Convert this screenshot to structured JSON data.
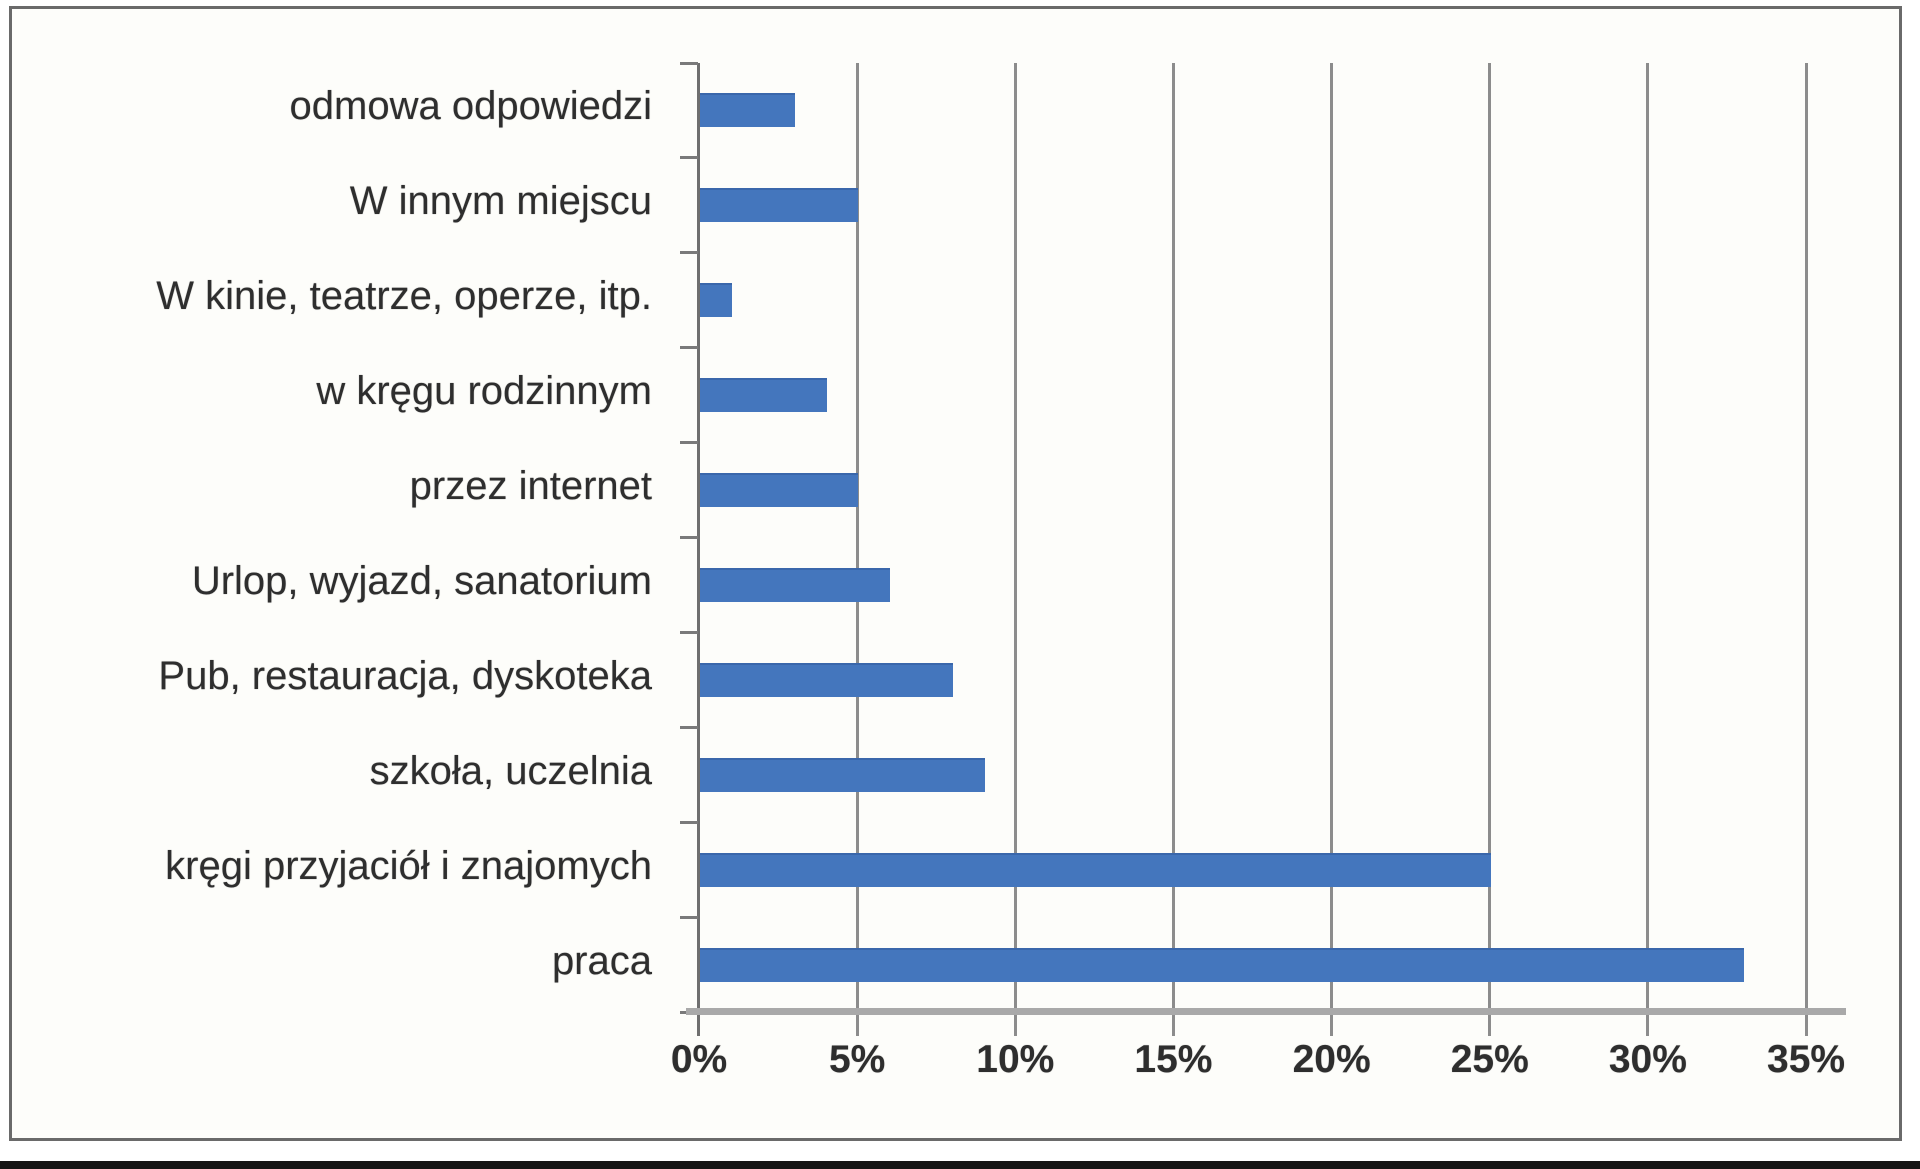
{
  "chart_data": {
    "type": "bar",
    "orientation": "horizontal",
    "title": "",
    "xlabel": "",
    "ylabel": "",
    "unit": "%",
    "categories_top_to_bottom": [
      "odmowa odpowiedzi",
      "W innym miejscu",
      "W kinie, teatrze, operze, itp.",
      "w kręgu rodzinnym",
      "przez internet",
      "Urlop, wyjazd, sanatorium",
      "Pub, restauracja, dyskoteka",
      "szkoła, uczelnia",
      "kręgi przyjaciół i znajomych",
      "praca"
    ],
    "values": [
      3,
      5,
      1,
      4,
      5,
      6,
      8,
      9,
      25,
      33
    ],
    "x_ticks": [
      "0%",
      "5%",
      "10%",
      "15%",
      "20%",
      "25%",
      "30%",
      "35%"
    ],
    "x_tick_values": [
      0,
      5,
      10,
      15,
      20,
      25,
      30,
      35
    ],
    "xlim": [
      0,
      35
    ],
    "grid": true,
    "legend": "none",
    "colors": {
      "bar": "#4476bd",
      "bar_edge": "#3a67ab",
      "gridline": "#8c8c8c",
      "axis": "#a9a9a9",
      "frame": "#6a6a6a",
      "text": "#2e2e2e",
      "background": "#fdfdfa"
    }
  }
}
